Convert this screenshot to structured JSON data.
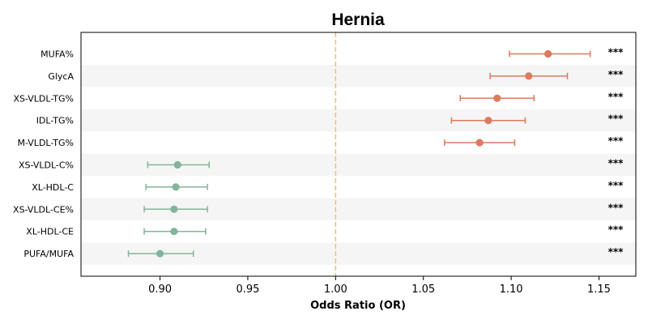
{
  "chart_data": {
    "type": "forest",
    "title": "Hernia",
    "xlabel": "Odds Ratio (OR)",
    "xlim": [
      0.855,
      1.171
    ],
    "xticks": [
      0.9,
      0.95,
      1.0,
      1.05,
      1.1,
      1.15
    ],
    "xtick_labels": [
      "0.90",
      "0.95",
      "1.00",
      "1.05",
      "1.10",
      "1.15"
    ],
    "reference_line": 1.0,
    "reference_color": "#f3c07f",
    "row_shading": "alternating",
    "colors": {
      "risk": "#dd7a5e",
      "protective": "#83b59a"
    },
    "rows": [
      {
        "label": "MUFA%",
        "or": 1.121,
        "lo": 1.099,
        "hi": 1.145,
        "sig": "***",
        "group": "risk"
      },
      {
        "label": "GlycA",
        "or": 1.11,
        "lo": 1.088,
        "hi": 1.132,
        "sig": "***",
        "group": "risk"
      },
      {
        "label": "XS-VLDL-TG%",
        "or": 1.092,
        "lo": 1.071,
        "hi": 1.113,
        "sig": "***",
        "group": "risk"
      },
      {
        "label": "IDL-TG%",
        "or": 1.087,
        "lo": 1.066,
        "hi": 1.108,
        "sig": "***",
        "group": "risk"
      },
      {
        "label": "M-VLDL-TG%",
        "or": 1.082,
        "lo": 1.062,
        "hi": 1.102,
        "sig": "***",
        "group": "risk"
      },
      {
        "label": "XS-VLDL-C%",
        "or": 0.91,
        "lo": 0.893,
        "hi": 0.928,
        "sig": "***",
        "group": "protective"
      },
      {
        "label": "XL-HDL-C",
        "or": 0.909,
        "lo": 0.892,
        "hi": 0.927,
        "sig": "***",
        "group": "protective"
      },
      {
        "label": "XS-VLDL-CE%",
        "or": 0.908,
        "lo": 0.891,
        "hi": 0.927,
        "sig": "***",
        "group": "protective"
      },
      {
        "label": "XL-HDL-CE",
        "or": 0.908,
        "lo": 0.891,
        "hi": 0.926,
        "sig": "***",
        "group": "protective"
      },
      {
        "label": "PUFA/MUFA",
        "or": 0.9,
        "lo": 0.882,
        "hi": 0.919,
        "sig": "***",
        "group": "protective"
      }
    ]
  }
}
